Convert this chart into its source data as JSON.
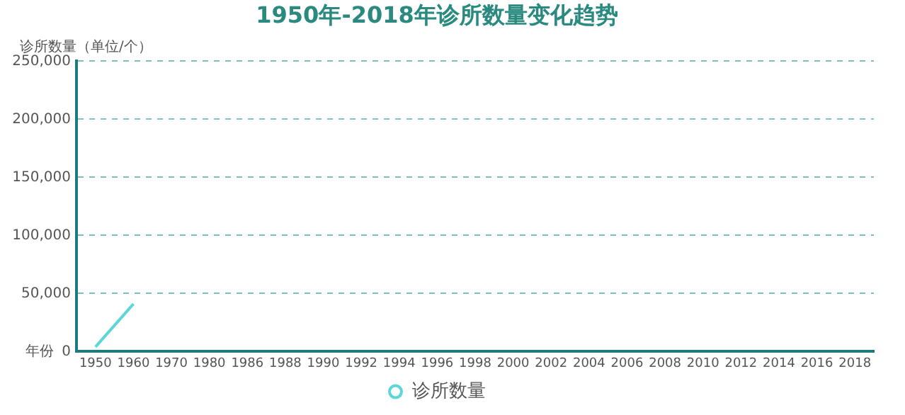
{
  "chart_data": {
    "type": "line",
    "title": "1950年-2018年诊所数量变化趋势",
    "xlabel": "年份",
    "ylabel": "诊所数量（单位/个）",
    "categories": [
      "1950",
      "1960",
      "1970",
      "1980",
      "1986",
      "1988",
      "1990",
      "1992",
      "1994",
      "1996",
      "1998",
      "2000",
      "2002",
      "2004",
      "2006",
      "2008",
      "2010",
      "2012",
      "2014",
      "2016",
      "2018"
    ],
    "series": [
      {
        "name": "诊所数量",
        "color": "#5cd6d6",
        "values": [
          4000,
          41000,
          null,
          null,
          null,
          null,
          null,
          null,
          null,
          null,
          null,
          null,
          null,
          null,
          null,
          null,
          null,
          null,
          null,
          null,
          null
        ]
      }
    ],
    "ylim": [
      0,
      250000
    ],
    "yticks": [
      {
        "value": 0,
        "label": "0"
      },
      {
        "value": 50000,
        "label": "50,000"
      },
      {
        "value": 100000,
        "label": "100,000"
      },
      {
        "value": 150000,
        "label": "150,000"
      },
      {
        "value": 200000,
        "label": "200,000"
      },
      {
        "value": 250000,
        "label": "250,000"
      }
    ],
    "grid": "y",
    "legend": "bottom",
    "line_style": "solid"
  }
}
